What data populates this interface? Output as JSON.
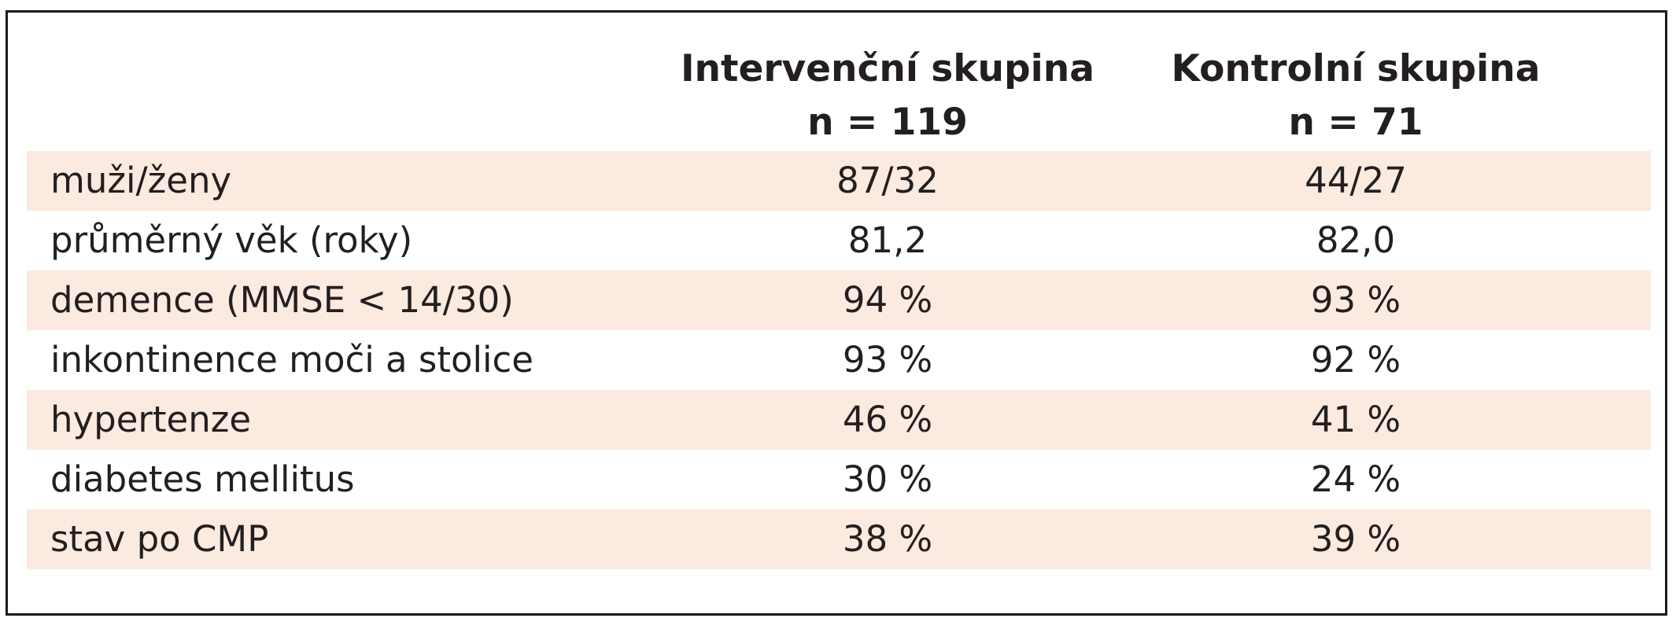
{
  "table": {
    "columns": [
      {
        "title": "Intervenční skupina",
        "n": "n = 119"
      },
      {
        "title": "Kontrolní skupina",
        "n": "n = 71"
      }
    ],
    "rows": [
      {
        "label": "muži/ženy",
        "intervention": "87/32",
        "control": "44/27"
      },
      {
        "label": "průměrný věk (roky)",
        "intervention": "81,2",
        "control": "82,0"
      },
      {
        "label": "demence (MMSE < 14/30)",
        "intervention": "94 %",
        "control": "93 %"
      },
      {
        "label": "inkontinence moči a stolice",
        "intervention": "93 %",
        "control": "92 %"
      },
      {
        "label": "hypertenze",
        "intervention": "46 %",
        "control": "41 %"
      },
      {
        "label": "diabetes mellitus",
        "intervention": "30 %",
        "control": "24 %"
      },
      {
        "label": "stav po CMP",
        "intervention": "38 %",
        "control": "39 %"
      }
    ],
    "colors": {
      "shaded_row": "#fbeadf",
      "border": "#1a1a1a",
      "text": "#231f20"
    }
  }
}
